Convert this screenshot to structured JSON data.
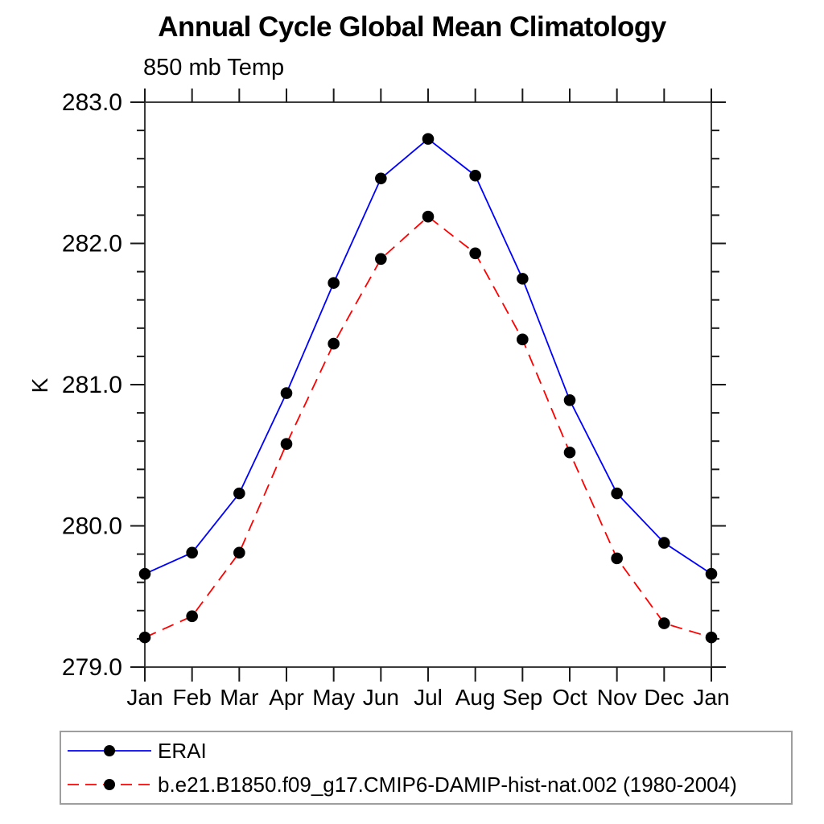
{
  "chart_data": {
    "type": "line",
    "title": "Annual Cycle Global Mean Climatology",
    "subtitle": "850 mb Temp",
    "xlabel": "",
    "ylabel": "K",
    "ylim": [
      279.0,
      283.0
    ],
    "y_major_ticks": [
      279.0,
      280.0,
      281.0,
      282.0,
      283.0
    ],
    "y_tick_labels": [
      "279.0",
      "280.0",
      "281.0",
      "282.0",
      "283.0"
    ],
    "y_minor_step": 0.2,
    "x_tick_labels": [
      "Jan",
      "Feb",
      "Mar",
      "Apr",
      "May",
      "Jun",
      "Jul",
      "Aug",
      "Sep",
      "Oct",
      "Nov",
      "Dec",
      "Jan"
    ],
    "grid": false,
    "legend_position": "bottom-left",
    "frame_color": "#3c3c3c",
    "tick_color": "#1a1a1a",
    "legend_border_color": "#9e9e9e",
    "series": [
      {
        "name": "ERAI",
        "color": "#0000ff",
        "line_style": "solid",
        "marker": "filled-circle",
        "marker_color": "#000000",
        "values": [
          279.66,
          279.81,
          280.23,
          280.94,
          281.72,
          282.46,
          282.74,
          282.48,
          281.75,
          280.89,
          280.23,
          279.88,
          279.66
        ]
      },
      {
        "name": "b.e21.B1850.f09_g17.CMIP6-DAMIP-hist-nat.002 (1980-2004)",
        "color": "#ff0000",
        "line_style": "dashed",
        "marker": "filled-circle",
        "marker_color": "#000000",
        "values": [
          279.21,
          279.36,
          279.81,
          280.58,
          281.29,
          281.89,
          282.19,
          281.93,
          281.32,
          280.52,
          279.77,
          279.31,
          279.21
        ]
      }
    ]
  }
}
